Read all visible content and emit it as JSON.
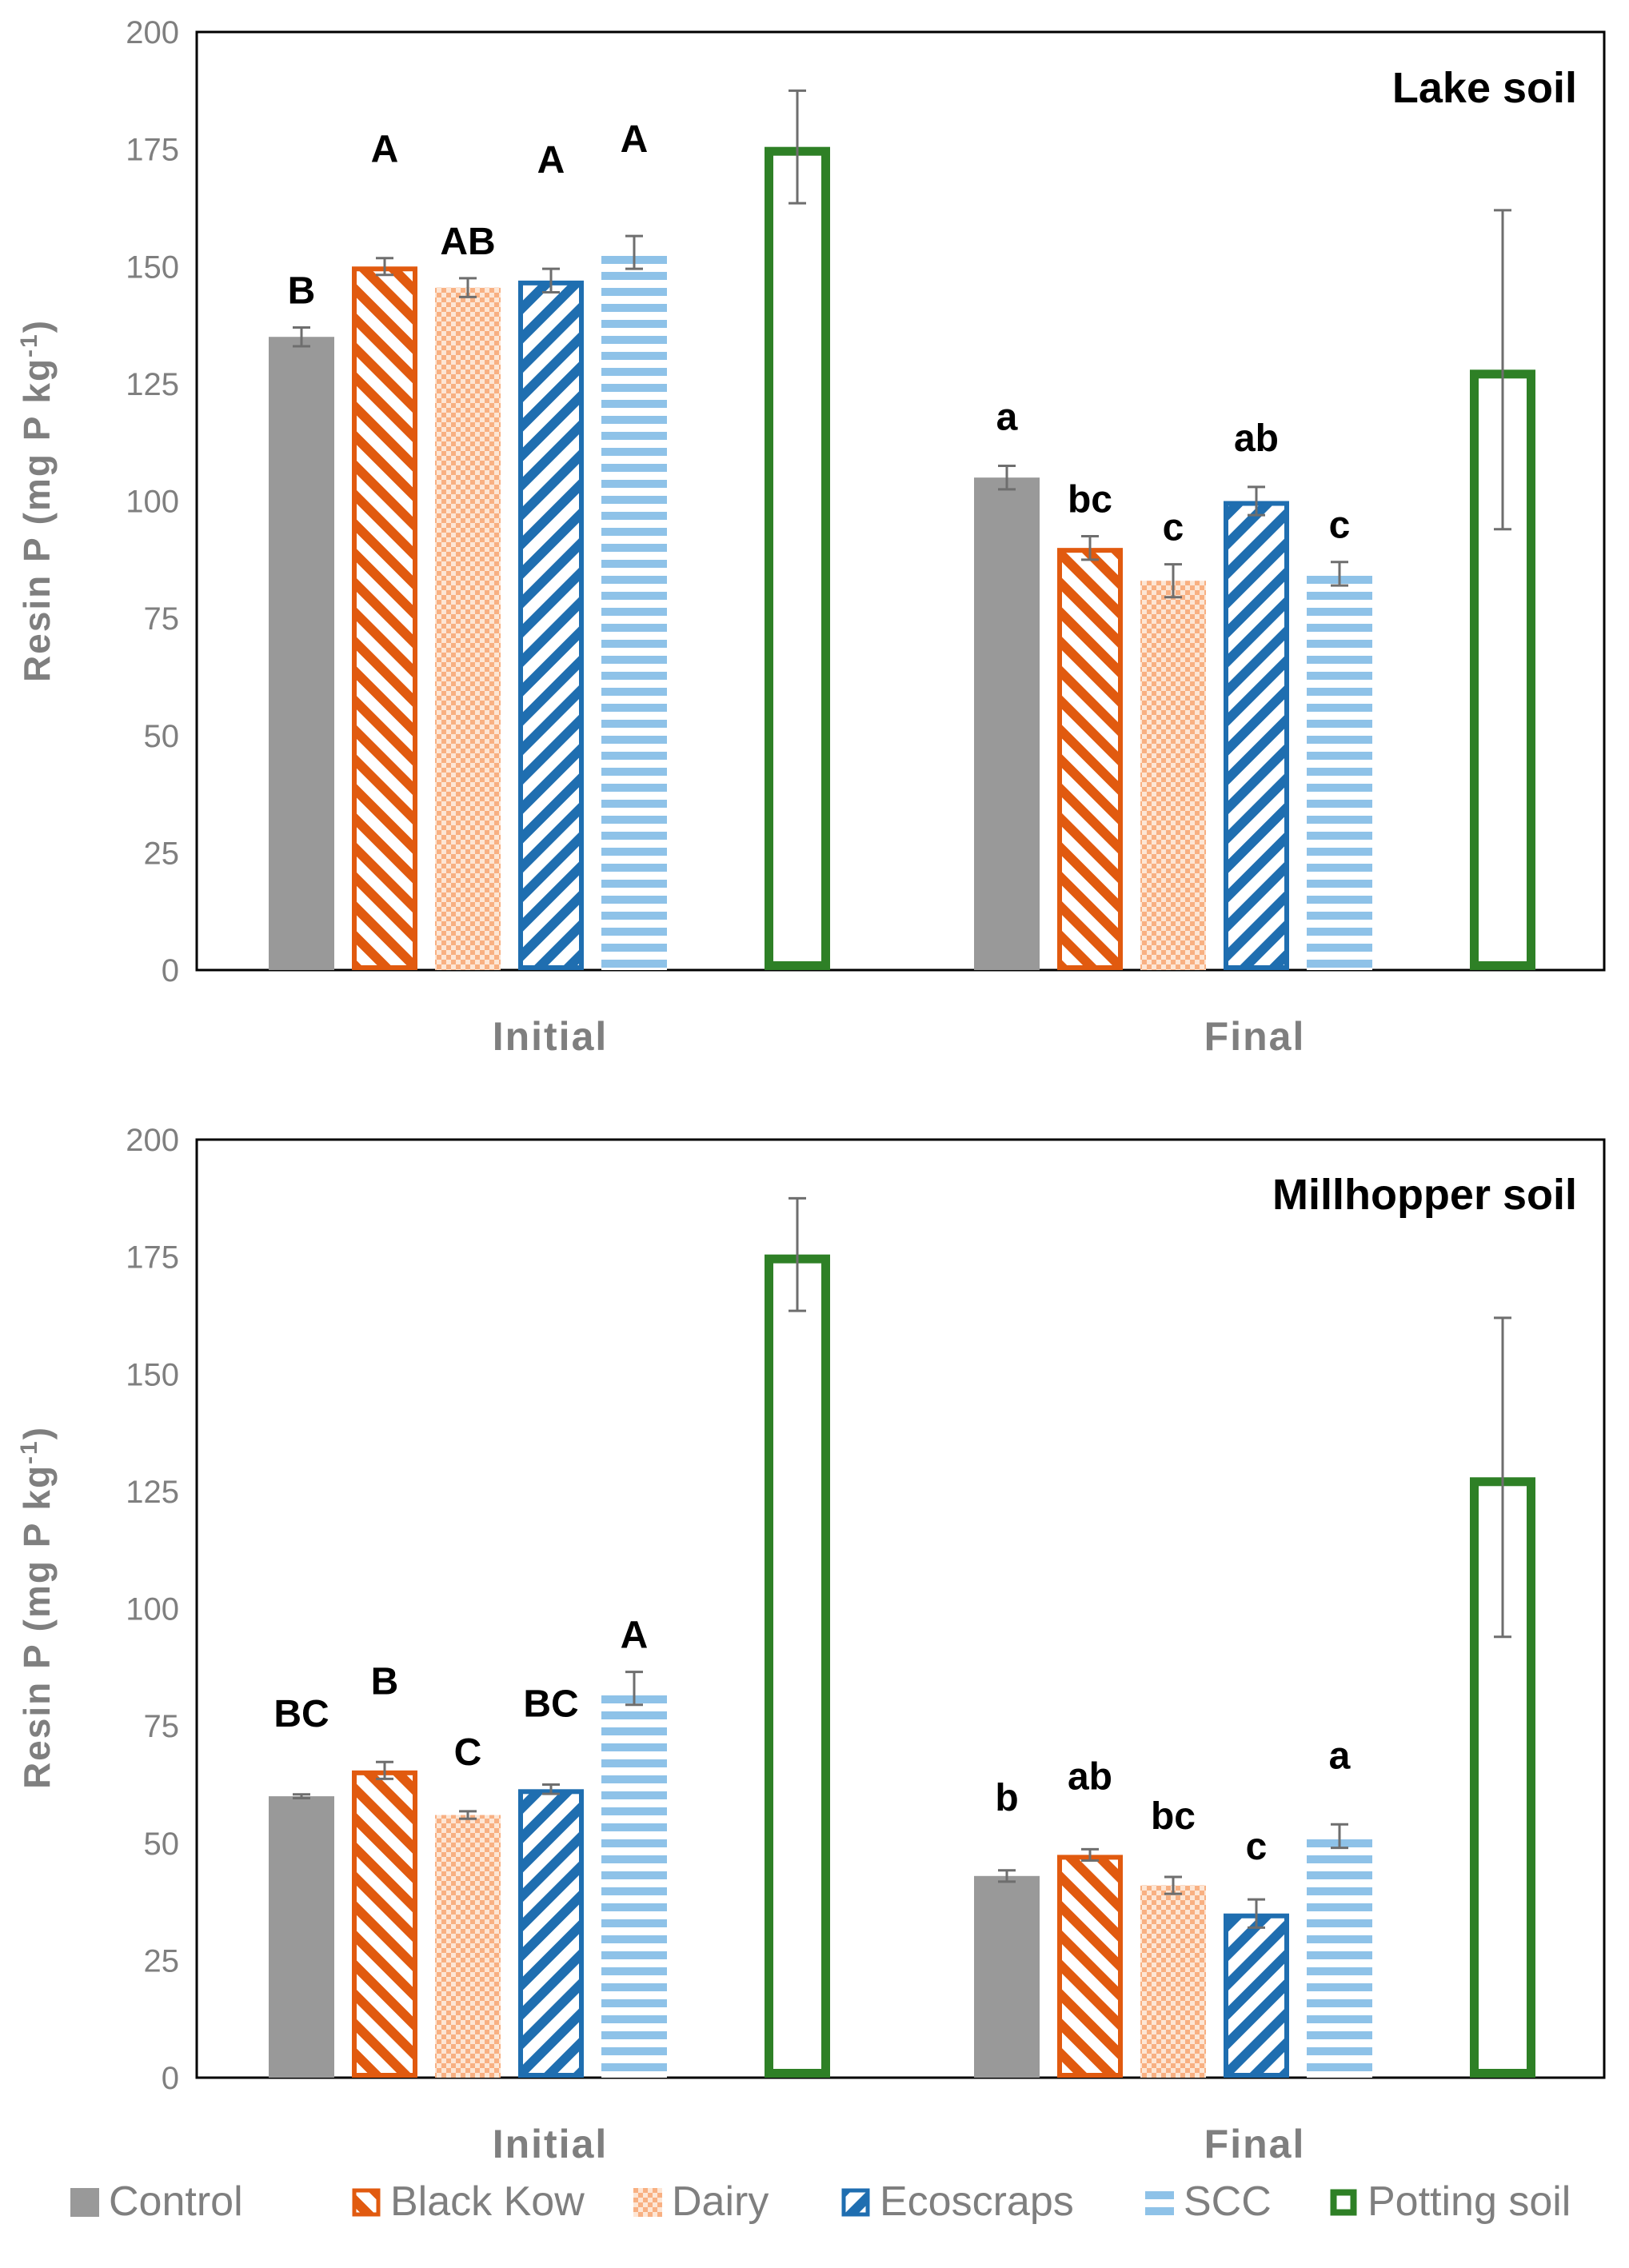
{
  "chart_data": [
    {
      "type": "bar",
      "title": "Lake soil",
      "xlabel": "",
      "ylabel": "Resin P (mg P kg",
      "ylabel_superscript": "-1",
      "ylabel_close": ")",
      "ylim": [
        0,
        200
      ],
      "yticks": [
        "0",
        "25",
        "50",
        "75",
        "100",
        "125",
        "150",
        "175",
        "200"
      ],
      "categories": [
        "Initial",
        "Final"
      ],
      "series": [
        {
          "name": "Control",
          "values": [
            135,
            105
          ],
          "err": [
            2,
            2.5
          ],
          "letters": [
            "B",
            "a"
          ]
        },
        {
          "name": "Black Kow",
          "values": [
            150,
            90
          ],
          "err": [
            1.8,
            2.5
          ],
          "letters": [
            "A",
            "bc"
          ]
        },
        {
          "name": "Dairy",
          "values": [
            145.5,
            83
          ],
          "err": [
            2,
            3.5
          ],
          "letters": [
            "AB",
            "c"
          ]
        },
        {
          "name": "Ecoscraps",
          "values": [
            147,
            100
          ],
          "err": [
            2.5,
            3
          ],
          "letters": [
            "A",
            "ab"
          ]
        },
        {
          "name": "SCC",
          "values": [
            153,
            84.5
          ],
          "err": [
            3.5,
            2.5
          ],
          "letters": [
            "A",
            "c"
          ]
        },
        {
          "name": "Potting soil",
          "values": [
            175.5,
            128
          ],
          "err": [
            12,
            34
          ],
          "letters": [
            "",
            ""
          ]
        }
      ]
    },
    {
      "type": "bar",
      "title": "Millhopper soil",
      "xlabel": "",
      "ylabel": "Resin P (mg P kg",
      "ylabel_superscript": "-1",
      "ylabel_close": ")",
      "ylim": [
        0,
        200
      ],
      "yticks": [
        "0",
        "25",
        "50",
        "75",
        "100",
        "125",
        "150",
        "175",
        "200"
      ],
      "categories": [
        "Initial",
        "Final"
      ],
      "series": [
        {
          "name": "Control",
          "values": [
            60,
            43
          ],
          "err": [
            0.4,
            1.2
          ],
          "letters": [
            "BC",
            "b"
          ]
        },
        {
          "name": "Black Kow",
          "values": [
            65.5,
            47.5
          ],
          "err": [
            1.8,
            1.2
          ],
          "letters": [
            "B",
            "ab"
          ]
        },
        {
          "name": "Dairy",
          "values": [
            56,
            41
          ],
          "err": [
            0.8,
            1.8
          ],
          "letters": [
            "C",
            "bc"
          ]
        },
        {
          "name": "Ecoscraps",
          "values": [
            61.5,
            35
          ],
          "err": [
            1,
            3
          ],
          "letters": [
            "BC",
            "c"
          ]
        },
        {
          "name": "SCC",
          "values": [
            83,
            51.5
          ],
          "err": [
            3.5,
            2.5
          ],
          "letters": [
            "A",
            "a"
          ]
        },
        {
          "name": "Potting soil",
          "values": [
            175.5,
            128
          ],
          "err": [
            12,
            34
          ],
          "letters": [
            "",
            ""
          ]
        }
      ]
    }
  ],
  "legend": [
    {
      "name": "Control",
      "pattern": "solid"
    },
    {
      "name": "Black Kow",
      "pattern": "diag-up"
    },
    {
      "name": "Dairy",
      "pattern": "checker"
    },
    {
      "name": "Ecoscraps",
      "pattern": "diag-down"
    },
    {
      "name": "SCC",
      "pattern": "horizontal"
    },
    {
      "name": "Potting soil",
      "pattern": "outline"
    }
  ],
  "colors": {
    "Control": "#999999",
    "Black Kow": "#e15a0f",
    "Dairy": "#f8b082",
    "Ecoscraps": "#1f6eb0",
    "SCC": "#8ec2e8",
    "Potting soil": "#2e8026",
    "axis": "#000000",
    "tick_text": "#7f7f7f",
    "error_bar": "#6e6e6e"
  }
}
